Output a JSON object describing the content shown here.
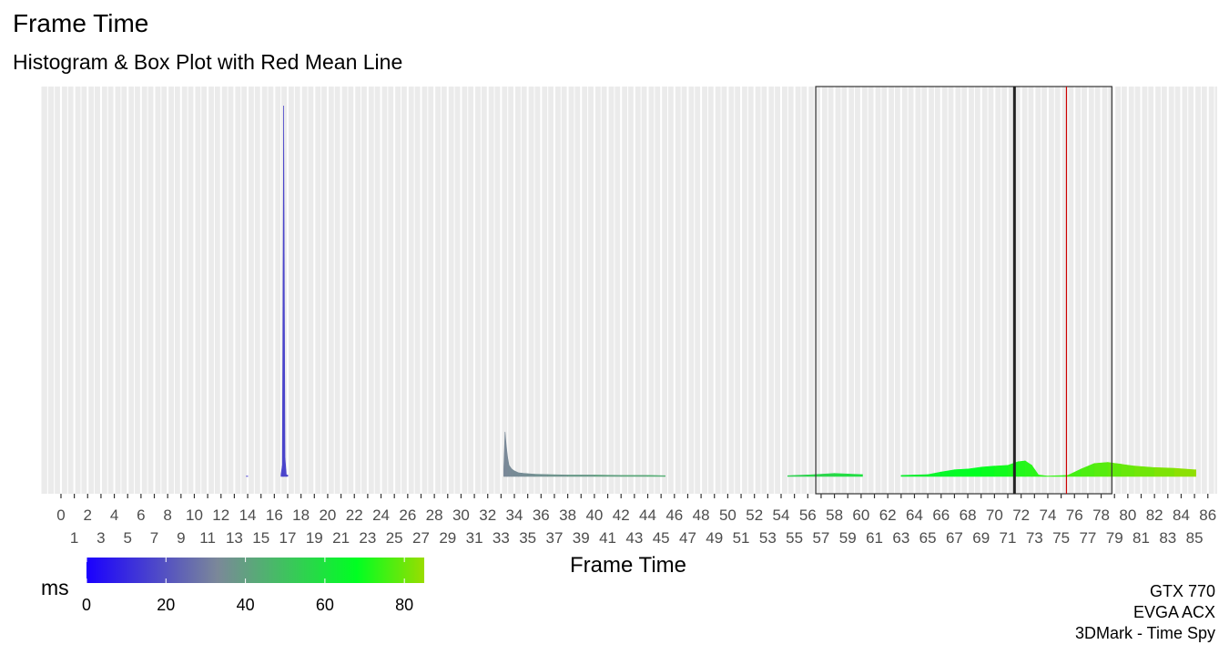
{
  "chart_data": {
    "type": "histogram",
    "title": "Frame Time",
    "subtitle": "Histogram & Box Plot with Red Mean Line",
    "xlabel": "Frame Time",
    "ylabel": "",
    "xlim": [
      -1.5,
      86.7
    ],
    "x_ticks": [
      0,
      1,
      2,
      3,
      4,
      5,
      6,
      7,
      8,
      9,
      10,
      11,
      12,
      13,
      14,
      15,
      16,
      17,
      18,
      19,
      20,
      21,
      22,
      23,
      24,
      25,
      26,
      27,
      28,
      29,
      30,
      31,
      32,
      33,
      34,
      35,
      36,
      37,
      38,
      39,
      40,
      41,
      42,
      43,
      44,
      45,
      46,
      47,
      48,
      49,
      50,
      51,
      52,
      53,
      54,
      55,
      56,
      57,
      58,
      59,
      60,
      61,
      62,
      63,
      64,
      65,
      66,
      67,
      68,
      69,
      70,
      71,
      72,
      73,
      74,
      75,
      76,
      77,
      78,
      79,
      80,
      81,
      82,
      83,
      84,
      85,
      86
    ],
    "grid": true,
    "legend": {
      "title": "ms",
      "position": "bottom-left",
      "ticks": [
        0,
        20,
        40,
        60,
        80
      ],
      "range": [
        0,
        85
      ],
      "color_stops": [
        {
          "value": 0,
          "color": "#1a00ff"
        },
        {
          "value": 33,
          "color": "#7b8899"
        },
        {
          "value": 68,
          "color": "#00ff22"
        },
        {
          "value": 85,
          "color": "#99dd00"
        }
      ]
    },
    "histogram": [
      {
        "x": 13.9,
        "count": 0.1
      },
      {
        "x": 16.5,
        "count": 0.5
      },
      {
        "x": 16.6,
        "count": 3.0
      },
      {
        "x": 16.7,
        "count": 100.0
      },
      {
        "x": 16.8,
        "count": 5.0
      },
      {
        "x": 16.9,
        "count": 0.4
      },
      {
        "x": 33.2,
        "count": 2.0
      },
      {
        "x": 33.3,
        "count": 12.0
      },
      {
        "x": 33.4,
        "count": 8.0
      },
      {
        "x": 33.5,
        "count": 5.0
      },
      {
        "x": 33.6,
        "count": 3.0
      },
      {
        "x": 33.8,
        "count": 2.0
      },
      {
        "x": 34.0,
        "count": 1.5
      },
      {
        "x": 34.3,
        "count": 1.0
      },
      {
        "x": 34.8,
        "count": 0.8
      },
      {
        "x": 35.5,
        "count": 0.6
      },
      {
        "x": 36.5,
        "count": 0.5
      },
      {
        "x": 38.0,
        "count": 0.4
      },
      {
        "x": 40.0,
        "count": 0.4
      },
      {
        "x": 42.0,
        "count": 0.3
      },
      {
        "x": 44.0,
        "count": 0.3
      },
      {
        "x": 45.2,
        "count": 0.2
      },
      {
        "x": 54.5,
        "count": 0.2
      },
      {
        "x": 56.0,
        "count": 0.4
      },
      {
        "x": 58.0,
        "count": 0.8
      },
      {
        "x": 60.0,
        "count": 0.5
      },
      {
        "x": 63.0,
        "count": 0.3
      },
      {
        "x": 65.0,
        "count": 0.5
      },
      {
        "x": 66.0,
        "count": 1.2
      },
      {
        "x": 67.0,
        "count": 1.8
      },
      {
        "x": 68.0,
        "count": 2.0
      },
      {
        "x": 69.0,
        "count": 2.5
      },
      {
        "x": 70.0,
        "count": 2.8
      },
      {
        "x": 71.0,
        "count": 3.0
      },
      {
        "x": 71.8,
        "count": 4.0
      },
      {
        "x": 72.3,
        "count": 4.2
      },
      {
        "x": 72.8,
        "count": 3.0
      },
      {
        "x": 73.3,
        "count": 0.4
      },
      {
        "x": 74.0,
        "count": 0.1
      },
      {
        "x": 75.5,
        "count": 0.3
      },
      {
        "x": 76.5,
        "count": 2.0
      },
      {
        "x": 77.5,
        "count": 3.5
      },
      {
        "x": 78.5,
        "count": 3.8
      },
      {
        "x": 79.5,
        "count": 3.3
      },
      {
        "x": 80.5,
        "count": 2.8
      },
      {
        "x": 82.0,
        "count": 2.4
      },
      {
        "x": 83.5,
        "count": 2.2
      },
      {
        "x": 85.0,
        "count": 1.8
      }
    ],
    "boxplot": {
      "q1": 56.6,
      "median": 71.5,
      "q3": 78.8,
      "mean": 75.4,
      "median_color": "#222222",
      "mean_color": "#cc0000"
    },
    "caption": [
      "GTX 770",
      "EVGA ACX",
      "3DMark - Time Spy"
    ]
  }
}
